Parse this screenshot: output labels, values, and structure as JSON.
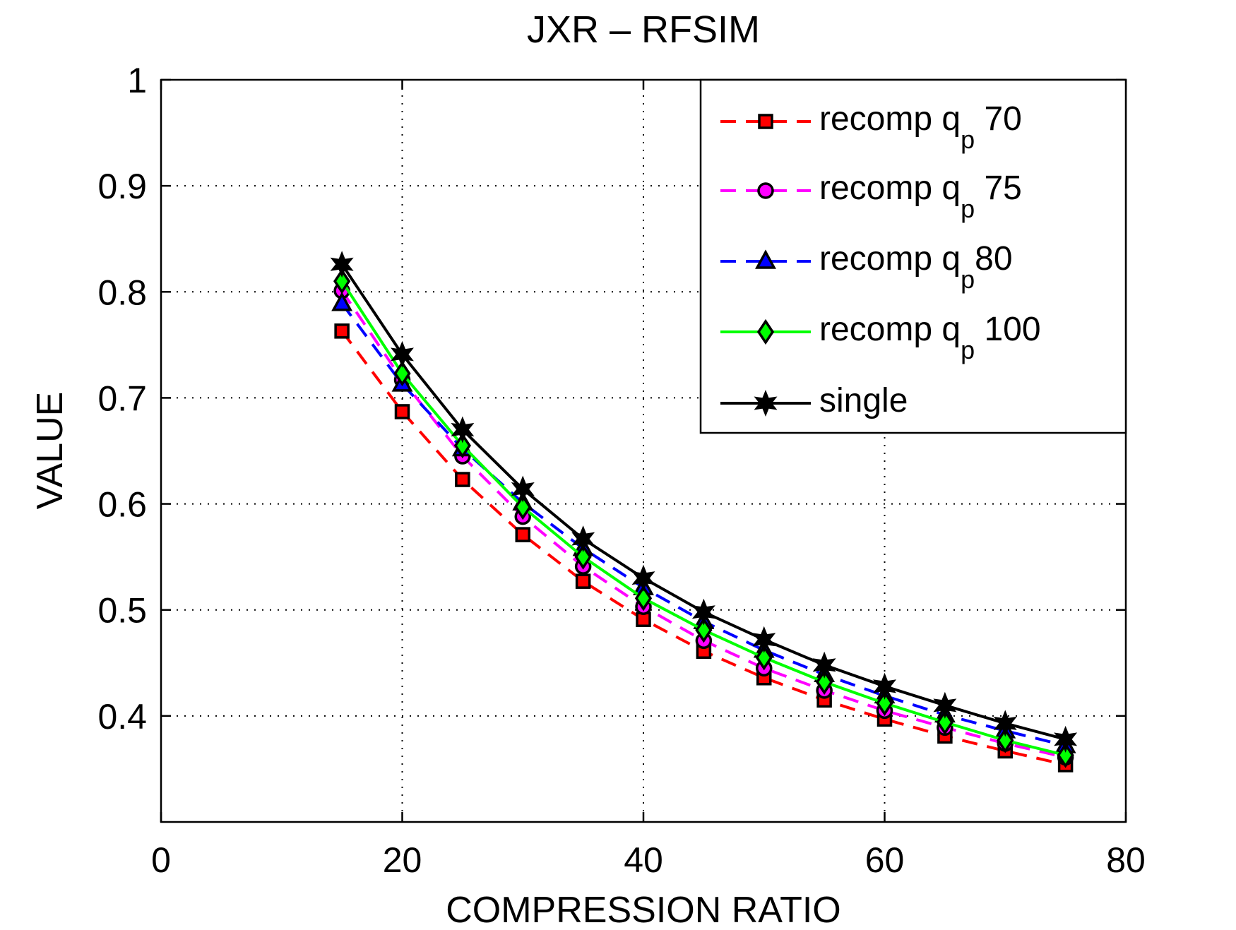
{
  "chart_data": {
    "type": "line",
    "title": "JXR – RFSIM",
    "xlabel": "COMPRESSION RATIO",
    "ylabel": "VALUE",
    "xlim": [
      0,
      80
    ],
    "ylim": [
      0.3,
      1.0
    ],
    "xticks": [
      0,
      20,
      40,
      60,
      80
    ],
    "yticks": [
      0.4,
      0.5,
      0.6,
      0.7,
      0.8,
      0.9,
      1.0
    ],
    "xtick_labels": [
      "0",
      "20",
      "40",
      "60",
      "80"
    ],
    "ytick_labels": [
      "0.4",
      "0.5",
      "0.6",
      "0.7",
      "0.8",
      "0.9",
      "1"
    ],
    "grid": true,
    "legend_position": "top-right",
    "x": [
      15,
      20,
      25,
      30,
      35,
      40,
      45,
      50,
      55,
      60,
      65,
      70,
      75
    ],
    "series": [
      {
        "name": "recomp q_p 70",
        "legend_main": "recomp q",
        "legend_sub": "p",
        "legend_tail": " 70",
        "color": "#ff0000",
        "line_style": "dashed",
        "marker": "square",
        "values": [
          0.763,
          0.687,
          0.623,
          0.571,
          0.527,
          0.491,
          0.461,
          0.436,
          0.415,
          0.397,
          0.381,
          0.367,
          0.354
        ]
      },
      {
        "name": "recomp q_p 75",
        "legend_main": "recomp q",
        "legend_sub": "p",
        "legend_tail": " 75",
        "color": "#ff00ff",
        "line_style": "dashed",
        "marker": "circle",
        "values": [
          0.801,
          0.717,
          0.645,
          0.588,
          0.541,
          0.503,
          0.471,
          0.445,
          0.424,
          0.405,
          0.389,
          0.374,
          0.361
        ]
      },
      {
        "name": "recomp q_p80",
        "legend_main": "recomp q",
        "legend_sub": "p",
        "legend_tail": "80",
        "color": "#0000ff",
        "line_style": "dashed",
        "marker": "triangle",
        "values": [
          0.789,
          0.713,
          0.652,
          0.601,
          0.558,
          0.521,
          0.489,
          0.462,
          0.439,
          0.419,
          0.401,
          0.386,
          0.372
        ]
      },
      {
        "name": "recomp q_p 100",
        "legend_main": "recomp q",
        "legend_sub": "p",
        "legend_tail": " 100",
        "color": "#00ff00",
        "line_style": "solid",
        "marker": "diamond",
        "values": [
          0.81,
          0.723,
          0.655,
          0.597,
          0.55,
          0.511,
          0.481,
          0.455,
          0.432,
          0.412,
          0.394,
          0.377,
          0.363
        ]
      },
      {
        "name": "single",
        "legend_main": "single",
        "legend_sub": "",
        "legend_tail": "",
        "color": "#000000",
        "line_style": "solid",
        "marker": "star",
        "values": [
          0.826,
          0.741,
          0.67,
          0.614,
          0.567,
          0.53,
          0.498,
          0.472,
          0.448,
          0.428,
          0.41,
          0.393,
          0.378
        ]
      }
    ]
  }
}
